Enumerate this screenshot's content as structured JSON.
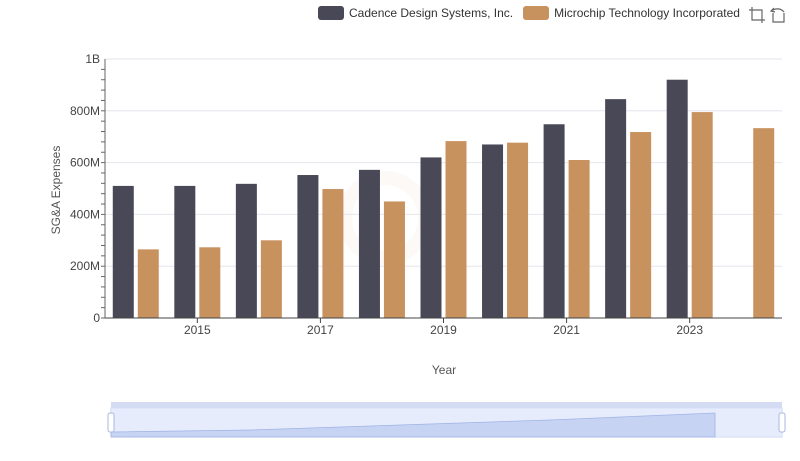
{
  "legend": {
    "series_0": "Cadence Design Systems, Inc.",
    "series_1": "Microchip Technology Incorporated"
  },
  "toolbox": {
    "zoom_icon": "zoom-box-icon",
    "reset_icon": "restore-icon"
  },
  "colors": {
    "cadence": "#484856",
    "microchip": "#c8925f",
    "grid": "#e6e6ee",
    "zoom_fill": "#dde6fb",
    "zoom_border": "#a8b8e0"
  },
  "chart_data": {
    "type": "bar",
    "xlabel": "Year",
    "ylabel": "SG&A Expenses",
    "categories": [
      "2014",
      "2015",
      "2016",
      "2017",
      "2018",
      "2019",
      "2020",
      "2021",
      "2022",
      "2023",
      "2024"
    ],
    "x_tick_labels": [
      "2015",
      "2017",
      "2019",
      "2021",
      "2023"
    ],
    "y_tick_labels": [
      "0",
      "200M",
      "400M",
      "600M",
      "800M",
      "1B"
    ],
    "ylim": [
      0,
      1000000000
    ],
    "grid": true,
    "legend_position": "top-right",
    "series": [
      {
        "name": "Cadence Design Systems, Inc.",
        "values": [
          510000000,
          510000000,
          518000000,
          552000000,
          572000000,
          620000000,
          670000000,
          748000000,
          845000000,
          920000000,
          null
        ]
      },
      {
        "name": "Microchip Technology Incorporated",
        "values": [
          265000000,
          273000000,
          300000000,
          498000000,
          450000000,
          683000000,
          677000000,
          610000000,
          718000000,
          795000000,
          733000000
        ]
      }
    ]
  }
}
